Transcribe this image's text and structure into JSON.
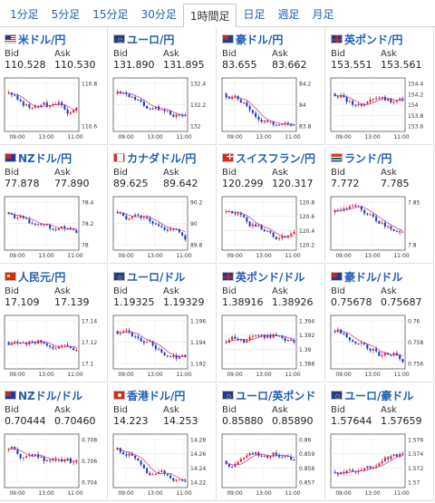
{
  "tabs": [
    {
      "label": "1分足",
      "active": false
    },
    {
      "label": "5分足",
      "active": false
    },
    {
      "label": "15分足",
      "active": false
    },
    {
      "label": "30分足",
      "active": false
    },
    {
      "label": "1時間足",
      "active": true
    },
    {
      "label": "日足",
      "active": false
    },
    {
      "label": "週足",
      "active": false
    },
    {
      "label": "月足",
      "active": false
    }
  ],
  "labels": {
    "bid": "Bid",
    "ask": "Ask"
  },
  "colors": {
    "link": "#1f5fb5",
    "up": "#e0262d",
    "down": "#1f3fbf",
    "ma": "#c02aa0"
  },
  "pairs": [
    {
      "name": "米ドル/円",
      "flag": "us-flag-icon",
      "bid": "110.528",
      "ask": "110.530",
      "yticks": [
        "110.8",
        "110.6"
      ],
      "xticks": [
        "09:00",
        "13:00",
        "11:00"
      ],
      "trend": "down"
    },
    {
      "name": "ユーロ/円",
      "flag": "eu-flag-icon",
      "bid": "131.890",
      "ask": "131.895",
      "yticks": [
        "132.4",
        "132.2",
        "132"
      ],
      "xticks": [
        "09:00",
        "13:00",
        "11:00"
      ],
      "trend": "down"
    },
    {
      "name": "豪ドル/円",
      "flag": "au-flag-icon",
      "bid": "83.655",
      "ask": "83.662",
      "yticks": [
        "84.2",
        "84",
        "83.8"
      ],
      "xticks": [
        "09:00",
        "13:00",
        "11:00"
      ],
      "trend": "down"
    },
    {
      "name": "英ポンド/円",
      "flag": "gb-flag-icon",
      "bid": "153.551",
      "ask": "153.561",
      "yticks": [
        "154.4",
        "154.2",
        "154",
        "153.8",
        "153.6"
      ],
      "xticks": [
        "09:00",
        "13:00",
        "11:00"
      ],
      "trend": "down"
    },
    {
      "name": "NZドル/円",
      "flag": "nz-flag-icon",
      "bid": "77.878",
      "ask": "77.890",
      "yticks": [
        "78.4",
        "78.2",
        "78"
      ],
      "xticks": [
        "09:00",
        "13:00",
        "11:00"
      ],
      "trend": "down"
    },
    {
      "name": "カナダドル/円",
      "flag": "ca-flag-icon",
      "bid": "89.625",
      "ask": "89.642",
      "yticks": [
        "90.2",
        "90",
        "89.8"
      ],
      "xticks": [
        "09:00",
        "13:00",
        "11:00"
      ],
      "trend": "down"
    },
    {
      "name": "スイスフラン/円",
      "flag": "ch-flag-icon",
      "bid": "120.299",
      "ask": "120.317",
      "yticks": [
        "120.8",
        "120.6",
        "120.4",
        "120.2"
      ],
      "xticks": [
        "09:00",
        "13:00",
        "11:00"
      ],
      "trend": "down"
    },
    {
      "name": "ランド/円",
      "flag": "za-flag-icon",
      "bid": "7.772",
      "ask": "7.785",
      "yticks": [
        "7.85",
        "7.8"
      ],
      "xticks": [
        "09:00",
        "13:00",
        "11:00"
      ],
      "trend": "down"
    },
    {
      "name": "人民元/円",
      "flag": "cn-flag-icon",
      "bid": "17.109",
      "ask": "17.139",
      "yticks": [
        "17.14",
        "17.12",
        "17.1"
      ],
      "xticks": [
        "09:00",
        "13:00",
        "11:00"
      ],
      "trend": "flat"
    },
    {
      "name": "ユーロ/ドル",
      "flag": "eu-flag-icon",
      "bid": "1.19325",
      "ask": "1.19329",
      "yticks": [
        "1.196",
        "1.194",
        "1.192"
      ],
      "xticks": [
        "09:00",
        "13:00",
        "11:00"
      ],
      "trend": "down"
    },
    {
      "name": "英ポンド/ドル",
      "flag": "gb-flag-icon",
      "bid": "1.38916",
      "ask": "1.38926",
      "yticks": [
        "1.394",
        "1.392",
        "1.39",
        "1.388"
      ],
      "xticks": [
        "09:00",
        "13:00",
        "11:00"
      ],
      "trend": "flat"
    },
    {
      "name": "豪ドル/ドル",
      "flag": "au-flag-icon",
      "bid": "0.75678",
      "ask": "0.75687",
      "yticks": [
        "0.76",
        "0.758",
        "0.756"
      ],
      "xticks": [
        "09:00",
        "13:00",
        "11:00"
      ],
      "trend": "down"
    },
    {
      "name": "NZドル/ドル",
      "flag": "nz-flag-icon",
      "bid": "0.70444",
      "ask": "0.70460",
      "yticks": [
        "0.708",
        "0.706",
        "0.704"
      ],
      "xticks": [
        "09:00",
        "13:00",
        "11:00"
      ],
      "trend": "down"
    },
    {
      "name": "香港ドル/円",
      "flag": "hk-flag-icon",
      "bid": "14.223",
      "ask": "14.253",
      "yticks": [
        "14.28",
        "14.26",
        "14.24",
        "14.22"
      ],
      "xticks": [
        "09:00",
        "13:00",
        "11:00"
      ],
      "trend": "down"
    },
    {
      "name": "ユーロ/英ポンド",
      "flag": "eu-flag-icon",
      "bid": "0.85880",
      "ask": "0.85890",
      "yticks": [
        "0.86",
        "0.859",
        "0.858",
        "0.857"
      ],
      "xticks": [
        "09:00",
        "13:00",
        "11:00"
      ],
      "trend": "flat"
    },
    {
      "name": "ユーロ/豪ドル",
      "flag": "eu-flag-icon",
      "bid": "1.57644",
      "ask": "1.57659",
      "yticks": [
        "1.576",
        "1.574",
        "1.572",
        "1.57"
      ],
      "xticks": [
        "09:00",
        "13:00",
        "11:00"
      ],
      "trend": "up"
    }
  ]
}
